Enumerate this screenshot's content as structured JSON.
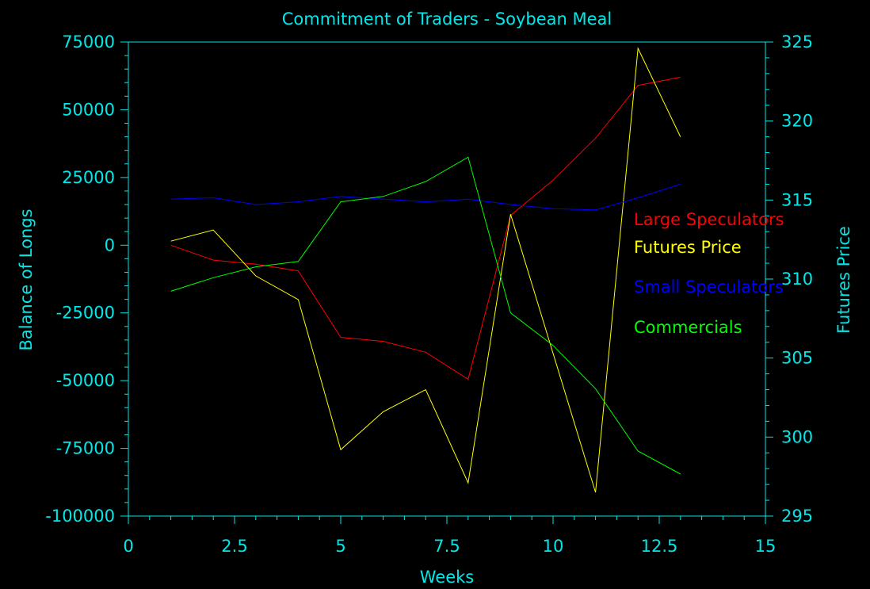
{
  "chart_data": {
    "type": "line",
    "title": "Commitment of Traders - Soybean Meal",
    "xlabel": "Weeks",
    "ylabel": "Balance of Longs",
    "y2label": "Futures Price",
    "xlim": [
      0,
      15
    ],
    "ylim": [
      -100000,
      75000
    ],
    "y2lim": [
      295,
      325
    ],
    "x_ticks": [
      "0",
      "2.5",
      "5",
      "7.5",
      "10",
      "12.5",
      "15"
    ],
    "y_ticks": [
      "75000",
      "50000",
      "25000",
      "0",
      "-25000",
      "-50000",
      "-75000",
      "-100000"
    ],
    "y2_ticks": [
      "325",
      "320",
      "315",
      "310",
      "305",
      "300",
      "295"
    ],
    "x": [
      1,
      2,
      3,
      4,
      5,
      6,
      7,
      8,
      9,
      10,
      11,
      12,
      13
    ],
    "series": [
      {
        "name": "Large Speculators",
        "axis": "left",
        "color": "#ff0000",
        "values": [
          0,
          -5500,
          -7000,
          -9500,
          -34000,
          -35500,
          -39500,
          -49500,
          11000,
          24000,
          39500,
          59000,
          62000
        ]
      },
      {
        "name": "Futures Price",
        "axis": "right",
        "color": "#ffff00",
        "values": [
          312.4,
          313.1,
          310.2,
          308.7,
          299.2,
          301.6,
          303.0,
          297.1,
          314.1,
          305.3,
          296.5,
          324.6,
          319.0
        ]
      },
      {
        "name": "Small Speculators",
        "axis": "left",
        "color": "#0000ff",
        "values": [
          17000,
          17500,
          15000,
          16000,
          18000,
          17000,
          16000,
          17000,
          15000,
          13500,
          13000,
          17500,
          22500
        ]
      },
      {
        "name": "Commercials",
        "axis": "left",
        "color": "#00ff00",
        "values": [
          -17000,
          -12000,
          -8000,
          -6000,
          16000,
          18000,
          23500,
          32500,
          -25000,
          -37000,
          -53000,
          -76000,
          -84500
        ]
      }
    ],
    "grid": false,
    "legend_position": "right"
  },
  "colors": {
    "axis": "#00e8e8",
    "background": "#000000"
  }
}
